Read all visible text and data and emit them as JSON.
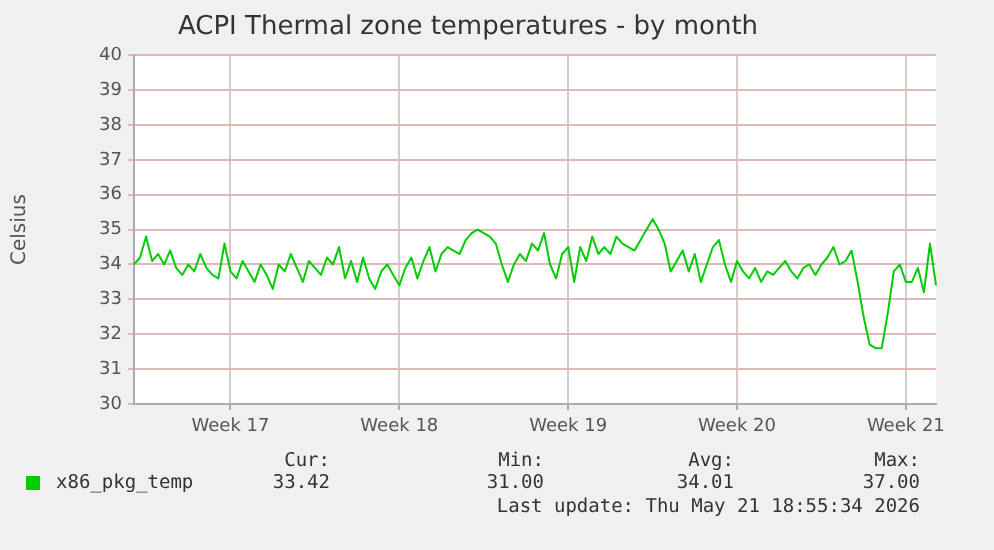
{
  "chart_data": {
    "type": "line",
    "title": "ACPI Thermal zone temperatures - by month",
    "ylabel": "Celsius",
    "categories": [
      null,
      null,
      null,
      null,
      null,
      null,
      null,
      null,
      null,
      null,
      null,
      null,
      null,
      null,
      null,
      null,
      "Week 17",
      null,
      null,
      null,
      null,
      null,
      null,
      null,
      null,
      null,
      null,
      null,
      null,
      null,
      null,
      null,
      null,
      null,
      null,
      null,
      null,
      null,
      null,
      null,
      null,
      null,
      null,
      null,
      "Week 18",
      null,
      null,
      null,
      null,
      null,
      null,
      null,
      null,
      null,
      null,
      null,
      null,
      null,
      null,
      null,
      null,
      null,
      null,
      null,
      null,
      null,
      null,
      null,
      null,
      null,
      null,
      null,
      "Week 19",
      null,
      null,
      null,
      null,
      null,
      null,
      null,
      null,
      null,
      null,
      null,
      null,
      null,
      null,
      null,
      null,
      null,
      null,
      null,
      null,
      null,
      null,
      null,
      null,
      null,
      null,
      null,
      "Week 20",
      null,
      null,
      null,
      null,
      null,
      null,
      null,
      null,
      null,
      null,
      null,
      null,
      null,
      null,
      null,
      null,
      null,
      null,
      null,
      null,
      null,
      null,
      null,
      null,
      null,
      null,
      null,
      "Week 21",
      null,
      null,
      null,
      null,
      null
    ],
    "ylim": [
      30,
      40
    ],
    "yticks": [
      30,
      31,
      32,
      33,
      34,
      35,
      36,
      37,
      38,
      39,
      40
    ],
    "grid": true,
    "legend": "bottom",
    "marker": "none",
    "line_style": "solid",
    "series": [
      {
        "name": "x86_pkg_temp",
        "color": "#00cc00",
        "values": [
          34.0,
          34.2,
          34.8,
          34.1,
          34.3,
          34.0,
          34.4,
          33.9,
          33.7,
          34.0,
          33.8,
          34.3,
          33.9,
          33.7,
          33.6,
          34.6,
          33.8,
          33.6,
          34.1,
          33.8,
          33.5,
          34.0,
          33.7,
          33.3,
          34.0,
          33.8,
          34.3,
          33.9,
          33.5,
          34.1,
          33.9,
          33.7,
          34.2,
          34.0,
          34.5,
          33.6,
          34.1,
          33.5,
          34.2,
          33.6,
          33.3,
          33.8,
          34.0,
          33.7,
          33.4,
          33.9,
          34.2,
          33.6,
          34.1,
          34.5,
          33.8,
          34.3,
          34.5,
          34.4,
          34.3,
          34.7,
          34.9,
          35.0,
          34.9,
          34.8,
          34.6,
          34.0,
          33.5,
          34.0,
          34.3,
          34.1,
          34.6,
          34.4,
          34.9,
          34.0,
          33.6,
          34.3,
          34.5,
          33.5,
          34.5,
          34.1,
          34.8,
          34.3,
          34.5,
          34.3,
          34.8,
          34.6,
          34.5,
          34.4,
          34.7,
          35.0,
          35.3,
          35.0,
          34.6,
          33.8,
          34.1,
          34.4,
          33.8,
          34.3,
          33.5,
          34.0,
          34.5,
          34.7,
          34.0,
          33.5,
          34.1,
          33.8,
          33.6,
          33.9,
          33.5,
          33.8,
          33.7,
          33.9,
          34.1,
          33.8,
          33.6,
          33.9,
          34.0,
          33.7,
          34.0,
          34.2,
          34.5,
          34.0,
          34.1,
          34.4,
          33.5,
          32.5,
          31.7,
          31.6,
          31.6,
          32.6,
          33.8,
          34.0,
          33.5,
          33.5,
          33.9,
          33.2,
          34.6,
          33.4
        ]
      }
    ],
    "annotations": [
      "Cur:",
      "Min:",
      "Avg:",
      "Max:",
      "33.42",
      "31.00",
      "34.01",
      "37.00",
      "Last update: Thu May 21 18:55:34 2026"
    ]
  }
}
